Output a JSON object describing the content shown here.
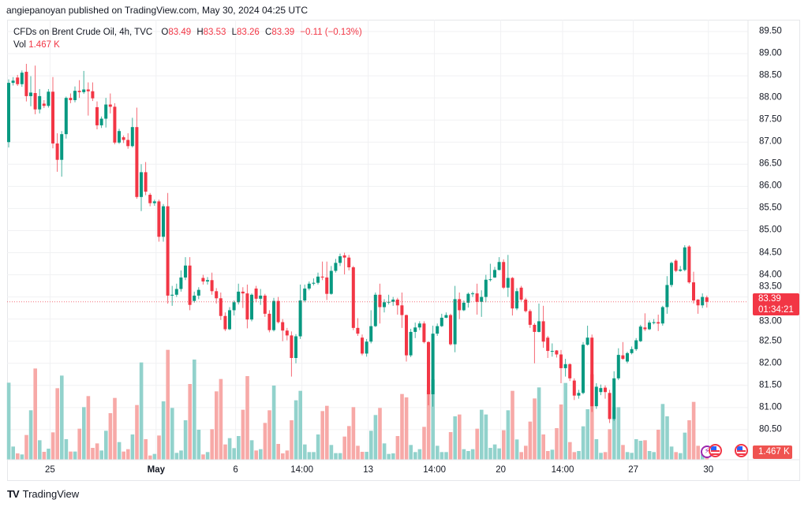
{
  "header": {
    "published": "angiepanoyan published on TradingView.com, May 30, 2024 04:25 UTC"
  },
  "legend": {
    "symbol": "CFDs on Brent Crude Oil, 4h, TVC",
    "o_label": "O",
    "o_value": "83.49",
    "h_label": "H",
    "h_value": "83.53",
    "l_label": "L",
    "l_value": "83.26",
    "c_label": "C",
    "c_value": "83.39",
    "change": "−0.11 (−0.13%)",
    "vol_label": "Vol",
    "vol_value": "1.467 K"
  },
  "last_price": {
    "price": "83.39",
    "countdown": "01:34:21"
  },
  "volume_badge": "1.467 K",
  "footer": {
    "brand": "TradingView"
  },
  "colors": {
    "up": "#089981",
    "down": "#f23645",
    "vol_up": "#92d2cc",
    "vol_down": "#f7a9a7",
    "grid": "#f0f1f3"
  },
  "chart_data": {
    "type": "candlestick",
    "title": "CFDs on Brent Crude Oil, 4h, TVC",
    "ylim": [
      80.25,
      89.75
    ],
    "y_ticks": [
      "89.50",
      "89.00",
      "88.50",
      "88.00",
      "87.50",
      "87.00",
      "86.50",
      "86.00",
      "85.50",
      "85.00",
      "84.50",
      "84.00",
      "83.50",
      "83.00",
      "82.50",
      "82.00",
      "81.50",
      "81.00",
      "80.50"
    ],
    "x_ticks": [
      {
        "label": "25",
        "bar": 10,
        "bold": false
      },
      {
        "label": "May",
        "bar": 34,
        "bold": true
      },
      {
        "label": "6",
        "bar": 52,
        "bold": false
      },
      {
        "label": "14:00",
        "bar": 67,
        "bold": false
      },
      {
        "label": "13",
        "bar": 82,
        "bold": false
      },
      {
        "label": "14:00",
        "bar": 97,
        "bold": false
      },
      {
        "label": "20",
        "bar": 112,
        "bold": false
      },
      {
        "label": "14:00",
        "bar": 126,
        "bold": false
      },
      {
        "label": "27",
        "bar": 142,
        "bold": false
      },
      {
        "label": "30",
        "bar": 159,
        "bold": false
      }
    ],
    "last_value": 83.39,
    "open": [
      87.0,
      88.34,
      88.46,
      88.31,
      88.59,
      88.04,
      88.11,
      87.74,
      87.87,
      87.82,
      88.14,
      86.97,
      86.6,
      87.18,
      88.0,
      87.95,
      88.16,
      88.13,
      88.19,
      88.15,
      87.79,
      87.38,
      87.53,
      87.85,
      87.8,
      86.99,
      87.11,
      87.05,
      86.91,
      87.34,
      85.76,
      86.32,
      85.81,
      85.62,
      85.66,
      84.86,
      85.55,
      83.53,
      83.55,
      83.68,
      83.94,
      84.21,
      83.41,
      83.53,
      83.93,
      83.85,
      83.88,
      83.63,
      83.47,
      83.07,
      82.77,
      83.2,
      83.38,
      83.62,
      83.58,
      82.99,
      83.69,
      83.46,
      83.53,
      83.12,
      82.75,
      83.41,
      82.93,
      82.74,
      82.63,
      82.12,
      82.61,
      83.42,
      83.69,
      83.8,
      83.82,
      83.96,
      83.94,
      83.57,
      84.09,
      84.27,
      84.44,
      84.39,
      84.17,
      82.8,
      82.58,
      82.22,
      82.49,
      82.84,
      83.55,
      83.27,
      83.38,
      83.39,
      83.44,
      83.31,
      83.09,
      82.18,
      82.71,
      82.81,
      82.9,
      82.48,
      81.3,
      82.67,
      82.84,
      83.03,
      83.09,
      82.43,
      83.45,
      83.2,
      83.37,
      83.57,
      83.58,
      83.39,
      83.5,
      83.89,
      83.94,
      84.11,
      84.29,
      83.71,
      83.93,
      83.24,
      83.71,
      83.44,
      83.18,
      82.87,
      82.71,
      82.95,
      82.58,
      82.28,
      82.29,
      82.2,
      81.89,
      81.98,
      81.61,
      81.27,
      81.33,
      82.42,
      82.58,
      81.03,
      81.35,
      81.45,
      81.33,
      80.74,
      81.66,
      82.18,
      82.04,
      82.23,
      82.32,
      82.5,
      82.81,
      82.77,
      82.91,
      82.93,
      82.9,
      83.27,
      83.77,
      84.32,
      84.09,
      84.11,
      84.64,
      83.83,
      83.44,
      83.31,
      83.49
    ],
    "high": [
      88.42,
      88.47,
      88.52,
      88.62,
      88.77,
      88.49,
      88.73,
      88.2,
      87.95,
      88.2,
      88.47,
      87.2,
      87.25,
      88.03,
      88.1,
      88.26,
      88.4,
      88.61,
      88.35,
      88.35,
      87.92,
      87.58,
      88.0,
      88.1,
      87.88,
      87.3,
      87.15,
      87.2,
      87.55,
      87.78,
      86.5,
      86.55,
      85.85,
      85.7,
      85.7,
      85.6,
      85.85,
      83.75,
      83.8,
      84.1,
      84.4,
      84.4,
      83.62,
      83.72,
      84.0,
      83.95,
      84.05,
      83.7,
      83.6,
      83.15,
      83.27,
      83.42,
      83.8,
      83.72,
      83.78,
      83.58,
      83.75,
      83.68,
      83.57,
      83.2,
      83.48,
      83.5,
      83.0,
      82.8,
      82.72,
      82.66,
      83.78,
      83.78,
      83.85,
      83.92,
      84.05,
      84.3,
      84.3,
      84.2,
      84.36,
      84.48,
      84.5,
      84.45,
      84.2,
      83.02,
      82.65,
      82.55,
      83.2,
      83.6,
      83.8,
      83.45,
      83.55,
      83.5,
      83.48,
      83.6,
      83.1,
      82.78,
      82.92,
      82.95,
      82.95,
      82.5,
      82.85,
      82.9,
      83.12,
      83.15,
      83.12,
      83.75,
      83.6,
      83.42,
      83.6,
      83.62,
      83.8,
      83.65,
      84.0,
      84.25,
      84.18,
      84.4,
      84.35,
      84.45,
      83.95,
      83.7,
      83.75,
      83.48,
      83.22,
      82.91,
      83.35,
      83.3,
      82.62,
      82.45,
      82.3,
      82.3,
      82.1,
      82.0,
      81.66,
      81.4,
      82.48,
      82.85,
      82.65,
      81.55,
      81.52,
      81.5,
      81.4,
      81.82,
      82.34,
      82.48,
      82.26,
      82.38,
      82.57,
      82.87,
      83.13,
      82.97,
      83.0,
      83.1,
      83.3,
      83.97,
      84.3,
      84.35,
      84.2,
      84.67,
      84.67,
      84.07,
      83.45,
      83.58,
      83.53
    ],
    "low": [
      86.88,
      88.28,
      88.27,
      88.25,
      87.92,
      87.81,
      87.63,
      87.65,
      87.77,
      87.78,
      86.86,
      86.33,
      86.22,
      87.08,
      87.88,
      87.9,
      88.0,
      88.09,
      87.6,
      87.93,
      87.29,
      87.32,
      87.33,
      87.65,
      86.95,
      86.96,
      86.98,
      86.85,
      86.88,
      85.72,
      85.44,
      85.8,
      85.55,
      85.56,
      84.75,
      84.75,
      83.35,
      83.3,
      83.5,
      83.62,
      83.88,
      83.2,
      83.37,
      83.45,
      83.78,
      83.78,
      83.55,
      83.35,
      82.98,
      82.73,
      82.75,
      83.08,
      83.33,
      83.25,
      82.79,
      82.95,
      83.38,
      83.32,
      83.05,
      82.7,
      82.72,
      82.9,
      82.5,
      82.52,
      81.7,
      82.0,
      82.55,
      83.38,
      83.65,
      83.76,
      83.78,
      83.88,
      83.43,
      83.55,
      84.05,
      84.2,
      84.01,
      84.1,
      82.75,
      82.62,
      82.18,
      82.15,
      82.45,
      82.82,
      82.9,
      83.15,
      83.33,
      83.3,
      83.1,
      82.8,
      82.04,
      82.14,
      82.57,
      82.75,
      82.45,
      81.05,
      81.02,
      82.62,
      82.82,
      83.02,
      82.4,
      82.25,
      83.0,
      83.18,
      83.26,
      83.5,
      83.1,
      83.05,
      83.38,
      83.85,
      83.93,
      84.1,
      83.68,
      83.5,
      83.08,
      83.2,
      83.4,
      83.15,
      82.8,
      82.0,
      82.7,
      82.35,
      82.12,
      82.15,
      82.13,
      81.55,
      81.7,
      81.6,
      81.17,
      81.2,
      81.3,
      82.4,
      80.9,
      80.97,
      81.28,
      81.2,
      80.65,
      80.7,
      81.62,
      82.08,
      82.0,
      82.2,
      82.28,
      82.48,
      82.73,
      82.75,
      82.88,
      82.73,
      82.85,
      83.12,
      83.72,
      84.06,
      84.07,
      84.08,
      83.8,
      83.35,
      83.12,
      83.25,
      83.26
    ],
    "close": [
      88.34,
      88.39,
      88.31,
      88.57,
      88.04,
      88.12,
      87.74,
      88.04,
      87.82,
      88.14,
      86.97,
      86.6,
      87.18,
      88.0,
      87.95,
      88.16,
      88.13,
      88.19,
      88.15,
      87.99,
      87.38,
      87.53,
      87.85,
      87.8,
      86.99,
      87.25,
      87.05,
      86.91,
      87.34,
      85.76,
      86.32,
      85.88,
      85.62,
      85.66,
      84.86,
      85.55,
      83.53,
      83.55,
      83.68,
      83.94,
      84.21,
      83.32,
      83.53,
      83.66,
      83.85,
      83.88,
      83.63,
      83.47,
      83.07,
      82.77,
      83.2,
      83.38,
      83.62,
      83.58,
      82.99,
      83.55,
      83.46,
      83.53,
      83.12,
      82.75,
      83.41,
      82.93,
      82.74,
      82.63,
      82.12,
      82.61,
      83.42,
      83.69,
      83.8,
      83.82,
      83.96,
      83.94,
      83.57,
      84.09,
      84.27,
      84.42,
      84.39,
      84.17,
      82.8,
      82.67,
      82.22,
      82.49,
      82.84,
      83.55,
      83.27,
      83.38,
      83.39,
      83.44,
      83.31,
      83.09,
      82.18,
      82.71,
      82.81,
      82.9,
      82.48,
      81.3,
      82.67,
      82.84,
      83.03,
      83.09,
      82.43,
      83.45,
      83.2,
      83.37,
      83.57,
      83.58,
      83.39,
      83.5,
      83.89,
      83.9,
      84.11,
      84.29,
      83.71,
      83.93,
      83.24,
      83.63,
      83.44,
      83.18,
      82.87,
      82.71,
      82.95,
      82.49,
      82.28,
      82.28,
      82.2,
      81.89,
      81.98,
      81.66,
      81.27,
      81.33,
      82.42,
      82.58,
      81.03,
      81.47,
      81.44,
      81.35,
      80.74,
      81.66,
      82.19,
      82.1,
      82.23,
      82.32,
      82.52,
      82.83,
      82.77,
      82.92,
      82.93,
      82.9,
      83.27,
      83.77,
      84.27,
      84.09,
      84.12,
      84.62,
      83.83,
      83.42,
      83.31,
      83.5,
      83.39
    ],
    "volume_k": [
      29.3,
      5.0,
      2.4,
      2.0,
      9.4,
      18.8,
      34.7,
      7.4,
      3.0,
      4.2,
      10.4,
      27.2,
      32.0,
      7.8,
      3.1,
      3.1,
      11.8,
      20.0,
      24.2,
      4.5,
      6.2,
      3.5,
      11.0,
      17.7,
      23.5,
      6.7,
      3.1,
      4.0,
      9.6,
      20.8,
      37.0,
      7.8,
      1.6,
      2.2,
      9.2,
      22.2,
      41.8,
      19.7,
      2.6,
      3.5,
      15.0,
      28.8,
      38.1,
      11.4,
      2.0,
      2.9,
      11.6,
      26.0,
      30.7,
      5.8,
      8.2,
      4.4,
      9.0,
      19.0,
      31.8,
      7.4,
      3.5,
      4.0,
      14.0,
      18.8,
      28.2,
      6.0,
      2.4,
      3.5,
      15.0,
      22.6,
      26.2,
      5.8,
      2.9,
      2.9,
      9.6,
      18.5,
      20.5,
      5.6,
      2.5,
      2.5,
      8.8,
      12.8,
      20.0,
      5.3,
      3.0,
      3.0,
      11.0,
      17.0,
      19.7,
      6.2,
      2.2,
      2.4,
      9.0,
      25.0,
      23.7,
      5.6,
      2.9,
      4.0,
      12.5,
      26.5,
      30.5,
      5.3,
      2.9,
      2.9,
      10.5,
      16.5,
      17.2,
      4.0,
      3.3,
      4.0,
      11.8,
      19.0,
      17.2,
      4.5,
      5.8,
      4.3,
      11.2,
      18.8,
      26.2,
      7.7,
      2.9,
      5.3,
      14.5,
      23.3,
      27.5,
      9.6,
      3.3,
      3.8,
      12.0,
      21.0,
      29.2,
      6.7,
      2.9,
      3.3,
      12.7,
      19.2,
      32.5,
      7.8,
      2.6,
      2.9,
      11.6,
      20.0,
      20.0,
      5.6,
      2.9,
      2.6,
      7.8,
      7.2,
      7.4,
      3.3,
      2.9,
      11.4,
      21.2,
      16.5,
      5.0,
      2.9,
      2.5,
      10.3,
      15.0,
      22.0,
      5.3,
      2.0,
      1.467
    ]
  }
}
